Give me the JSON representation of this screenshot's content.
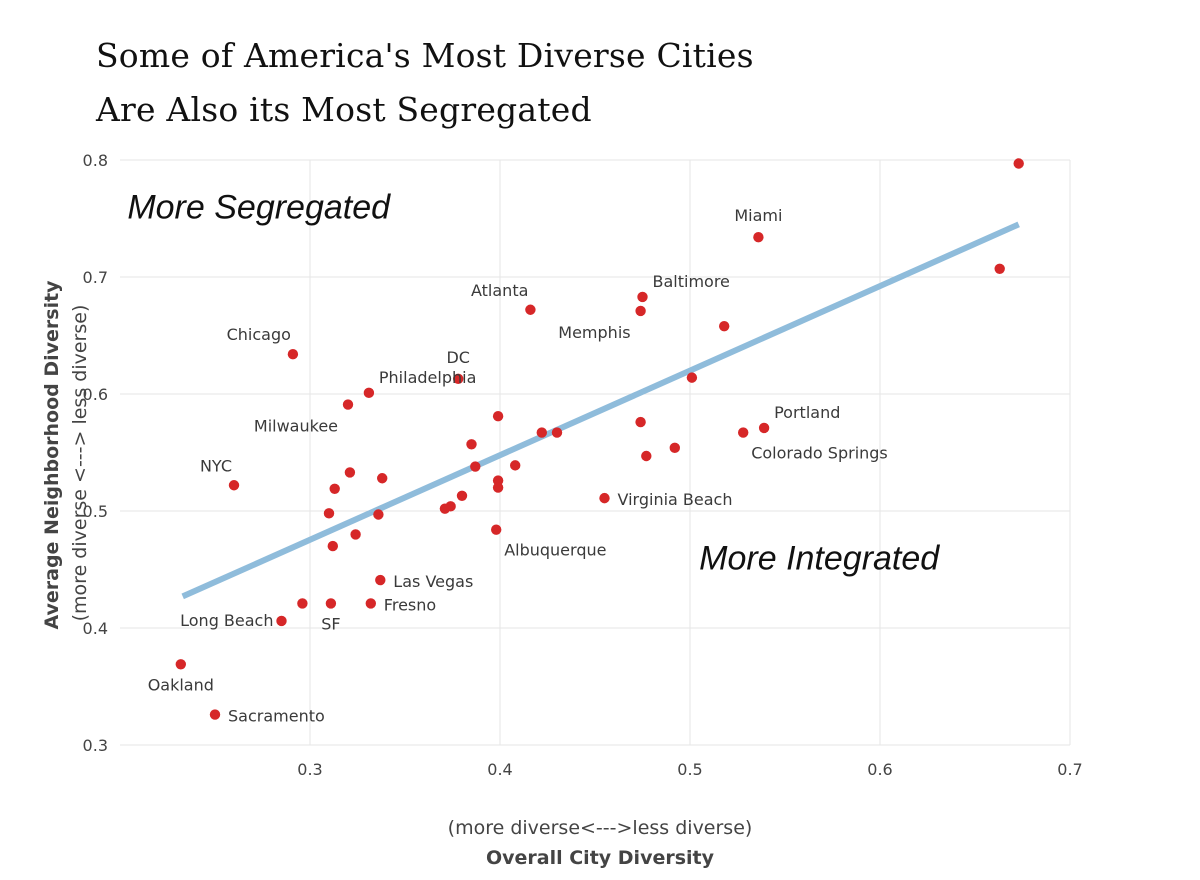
{
  "chart_data": {
    "type": "scatter",
    "title": [
      "Some of America's Most Diverse Cities",
      "Are Also its Most Segregated"
    ],
    "x_axis": {
      "title": "Overall City Diversity",
      "subtitle": "(more diverse<--->less diverse)",
      "range": [
        0.2,
        0.7
      ],
      "ticks": [
        0.3,
        0.4,
        0.5,
        0.6,
        0.7
      ]
    },
    "y_axis": {
      "title": "Average Neighborhood Diversity",
      "subtitle": "(more diverse <---> less diverse)",
      "range": [
        0.3,
        0.8
      ],
      "ticks": [
        0.3,
        0.4,
        0.5,
        0.6,
        0.7,
        0.8
      ]
    },
    "grid": true,
    "marker_color": "#d62728",
    "trendline": {
      "color": "#8fbcdb",
      "from": [
        0.233,
        0.427
      ],
      "to": [
        0.673,
        0.745
      ]
    },
    "annotations": [
      {
        "text": "More Segregated",
        "x": 0.273,
        "y": 0.75
      },
      {
        "text": "More Integrated",
        "x": 0.568,
        "y": 0.45
      }
    ],
    "points": [
      {
        "x": 0.673,
        "y": 0.797,
        "label": ""
      },
      {
        "x": 0.536,
        "y": 0.734,
        "label": "Miami",
        "label_pos": "above"
      },
      {
        "x": 0.663,
        "y": 0.707,
        "label": ""
      },
      {
        "x": 0.475,
        "y": 0.683,
        "label": "Baltimore",
        "label_pos": "above-right"
      },
      {
        "x": 0.416,
        "y": 0.672,
        "label": "Atlanta",
        "label_pos": "above-left"
      },
      {
        "x": 0.474,
        "y": 0.671,
        "label": "Memphis",
        "label_pos": "below-left"
      },
      {
        "x": 0.518,
        "y": 0.658,
        "label": ""
      },
      {
        "x": 0.291,
        "y": 0.634,
        "label": "Chicago",
        "label_pos": "above-left"
      },
      {
        "x": 0.378,
        "y": 0.613,
        "label": "DC",
        "label_pos": "above"
      },
      {
        "x": 0.501,
        "y": 0.614,
        "label": ""
      },
      {
        "x": 0.331,
        "y": 0.601,
        "label": "Philadelphia",
        "label_pos": "above-right"
      },
      {
        "x": 0.32,
        "y": 0.591,
        "label": "Milwaukee",
        "label_pos": "below-left"
      },
      {
        "x": 0.399,
        "y": 0.581,
        "label": ""
      },
      {
        "x": 0.474,
        "y": 0.576,
        "label": ""
      },
      {
        "x": 0.539,
        "y": 0.571,
        "label": "Portland",
        "label_pos": "above-right"
      },
      {
        "x": 0.528,
        "y": 0.567,
        "label": "Colorado Springs",
        "label_pos": "below-right"
      },
      {
        "x": 0.422,
        "y": 0.567,
        "label": ""
      },
      {
        "x": 0.43,
        "y": 0.567,
        "label": ""
      },
      {
        "x": 0.385,
        "y": 0.557,
        "label": ""
      },
      {
        "x": 0.492,
        "y": 0.554,
        "label": ""
      },
      {
        "x": 0.477,
        "y": 0.547,
        "label": ""
      },
      {
        "x": 0.408,
        "y": 0.539,
        "label": ""
      },
      {
        "x": 0.387,
        "y": 0.538,
        "label": ""
      },
      {
        "x": 0.321,
        "y": 0.533,
        "label": ""
      },
      {
        "x": 0.338,
        "y": 0.528,
        "label": ""
      },
      {
        "x": 0.399,
        "y": 0.526,
        "label": ""
      },
      {
        "x": 0.26,
        "y": 0.522,
        "label": "NYC",
        "label_pos": "above-left"
      },
      {
        "x": 0.399,
        "y": 0.52,
        "label": ""
      },
      {
        "x": 0.313,
        "y": 0.519,
        "label": ""
      },
      {
        "x": 0.38,
        "y": 0.513,
        "label": ""
      },
      {
        "x": 0.455,
        "y": 0.511,
        "label": "Virginia Beach",
        "label_pos": "right"
      },
      {
        "x": 0.374,
        "y": 0.504,
        "label": ""
      },
      {
        "x": 0.371,
        "y": 0.502,
        "label": ""
      },
      {
        "x": 0.31,
        "y": 0.498,
        "label": ""
      },
      {
        "x": 0.336,
        "y": 0.497,
        "label": ""
      },
      {
        "x": 0.398,
        "y": 0.484,
        "label": "Albuquerque",
        "label_pos": "below-right"
      },
      {
        "x": 0.324,
        "y": 0.48,
        "label": ""
      },
      {
        "x": 0.312,
        "y": 0.47,
        "label": ""
      },
      {
        "x": 0.337,
        "y": 0.441,
        "label": "Las Vegas",
        "label_pos": "right"
      },
      {
        "x": 0.296,
        "y": 0.421,
        "label": ""
      },
      {
        "x": 0.311,
        "y": 0.421,
        "label": "SF",
        "label_pos": "below"
      },
      {
        "x": 0.332,
        "y": 0.421,
        "label": "Fresno",
        "label_pos": "right"
      },
      {
        "x": 0.285,
        "y": 0.406,
        "label": "Long Beach",
        "label_pos": "left"
      },
      {
        "x": 0.232,
        "y": 0.369,
        "label": "Oakland",
        "label_pos": "below"
      },
      {
        "x": 0.25,
        "y": 0.326,
        "label": "Sacramento",
        "label_pos": "right"
      }
    ]
  }
}
